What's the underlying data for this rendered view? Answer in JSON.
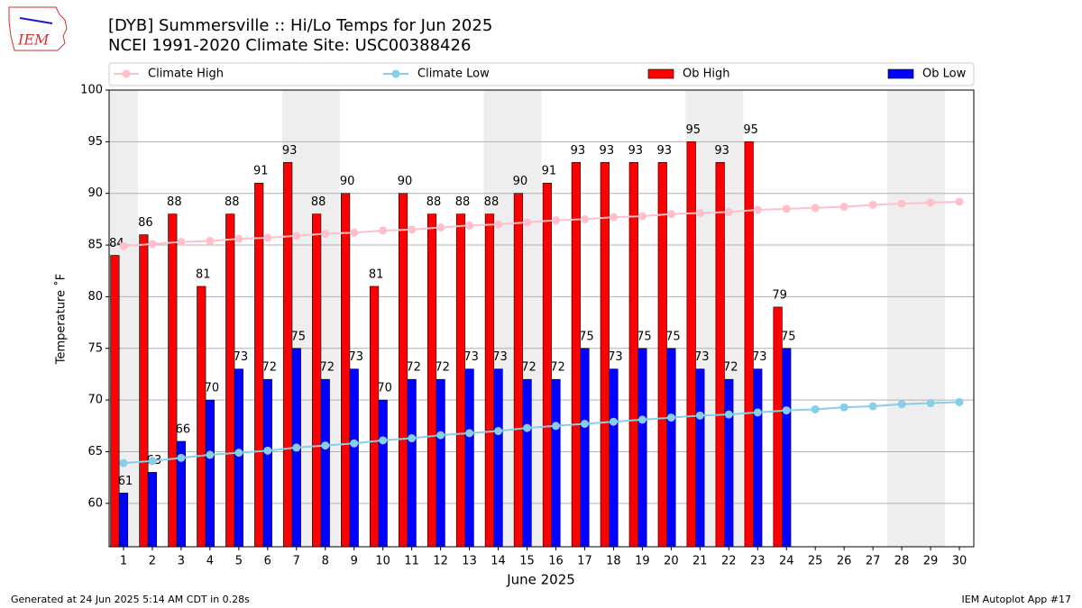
{
  "logo_text": "IEM",
  "footer_left": "Generated at 24 Jun 2025 5:14 AM CDT in 0.28s",
  "footer_right": "IEM Autoplot App #17",
  "chart_data": {
    "type": "bar_line",
    "title": "[DYB] Summersville :: Hi/Lo Temps for Jun 2025",
    "subtitle": "NCEI 1991-2020 Climate Site: USC00388426",
    "x_label": "June 2025",
    "y_label": "Temperature ˚F",
    "x": [
      1,
      2,
      3,
      4,
      5,
      6,
      7,
      8,
      9,
      10,
      11,
      12,
      13,
      14,
      15,
      16,
      17,
      18,
      19,
      20,
      21,
      22,
      23,
      24,
      25,
      26,
      27,
      28,
      29,
      30
    ],
    "xlim": [
      0.5,
      30.5
    ],
    "ylim": [
      55.8,
      100
    ],
    "yticks": [
      60,
      65,
      70,
      75,
      80,
      85,
      90,
      95,
      100
    ],
    "grid": true,
    "weekend_days": [
      1,
      7,
      8,
      14,
      15,
      21,
      22,
      28,
      29
    ],
    "weekend_color": "#eeeeee",
    "series": [
      {
        "name": "Climate High",
        "kind": "line",
        "color": "#ffc0cb",
        "values": [
          84.9,
          85.1,
          85.3,
          85.4,
          85.6,
          85.7,
          85.9,
          86.1,
          86.2,
          86.4,
          86.5,
          86.7,
          86.9,
          87.0,
          87.2,
          87.4,
          87.5,
          87.7,
          87.8,
          88.0,
          88.1,
          88.2,
          88.4,
          88.5,
          88.6,
          88.7,
          88.9,
          89.0,
          89.1,
          89.2
        ]
      },
      {
        "name": "Climate Low",
        "kind": "line",
        "color": "#87ceeb",
        "values": [
          63.9,
          64.1,
          64.4,
          64.7,
          64.9,
          65.1,
          65.4,
          65.6,
          65.8,
          66.1,
          66.3,
          66.6,
          66.8,
          67.0,
          67.3,
          67.5,
          67.7,
          67.9,
          68.1,
          68.3,
          68.5,
          68.6,
          68.8,
          69.0,
          69.1,
          69.3,
          69.4,
          69.6,
          69.7,
          69.8
        ]
      },
      {
        "name": "Ob High",
        "kind": "bar",
        "color": "#ff0000",
        "values": [
          84,
          86,
          88,
          81,
          88,
          91,
          93,
          88,
          90,
          81,
          90,
          88,
          88,
          88,
          90,
          91,
          93,
          93,
          93,
          93,
          95,
          93,
          95,
          79,
          null,
          null,
          null,
          null,
          null,
          null
        ]
      },
      {
        "name": "Ob Low",
        "kind": "bar",
        "color": "#0000ff",
        "values": [
          61,
          63,
          66,
          70,
          73,
          72,
          75,
          72,
          73,
          70,
          72,
          72,
          73,
          73,
          72,
          72,
          75,
          73,
          75,
          75,
          73,
          72,
          73,
          75,
          null,
          null,
          null,
          null,
          null,
          null
        ]
      }
    ]
  }
}
